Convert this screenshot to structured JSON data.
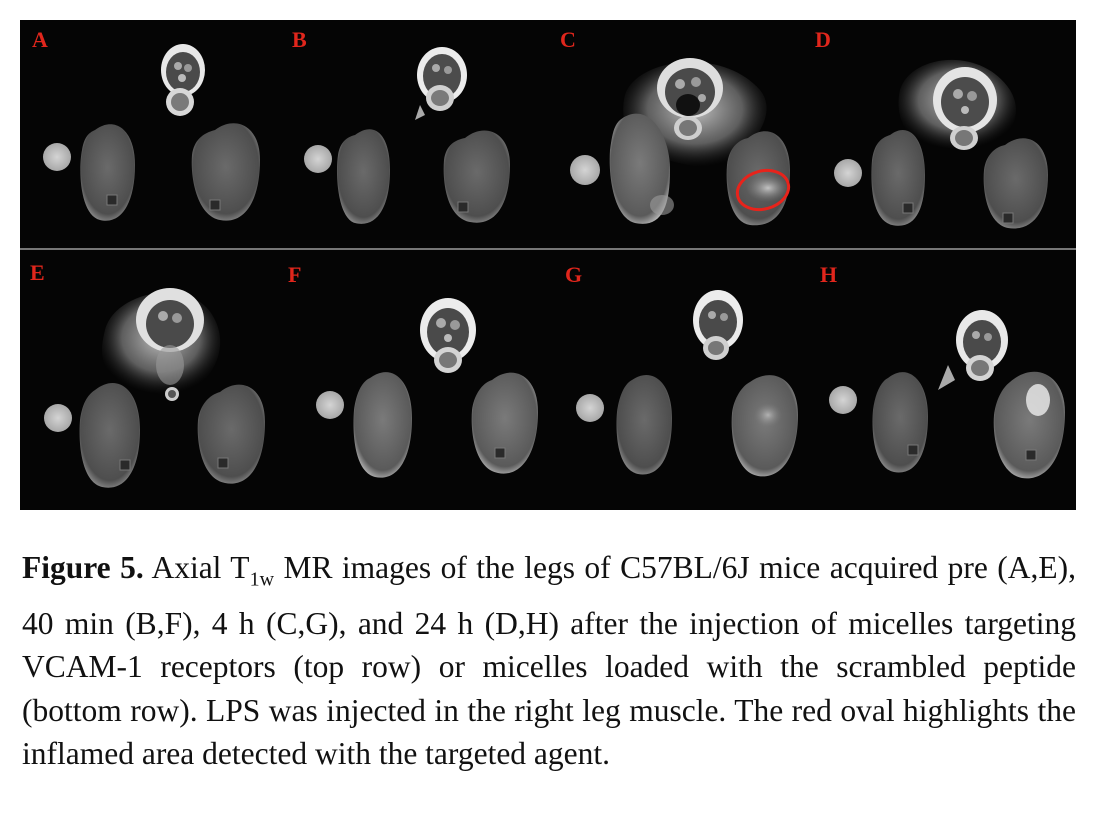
{
  "figure": {
    "panels": [
      {
        "label": "A"
      },
      {
        "label": "B"
      },
      {
        "label": "C"
      },
      {
        "label": "D"
      },
      {
        "label": "E"
      },
      {
        "label": "F"
      },
      {
        "label": "G"
      },
      {
        "label": "H"
      }
    ],
    "highlight_color": "#e8231b",
    "label_color": "#e0261c"
  },
  "caption": {
    "label": "Figure 5.",
    "part1": " Axial T",
    "subscript": "1w",
    "part2": " MR images of the legs of C57BL/6J mice acquired pre (A,E), 40 min (B,F), 4 h (C,G), and 24 h (D,H) after the injection of micelles targeting VCAM-1 receptors (top row) or micelles loaded with the scrambled peptide (bottom row). LPS was injected in the right leg muscle. The red oval highlights the inflamed area detected with the targeted agent."
  }
}
